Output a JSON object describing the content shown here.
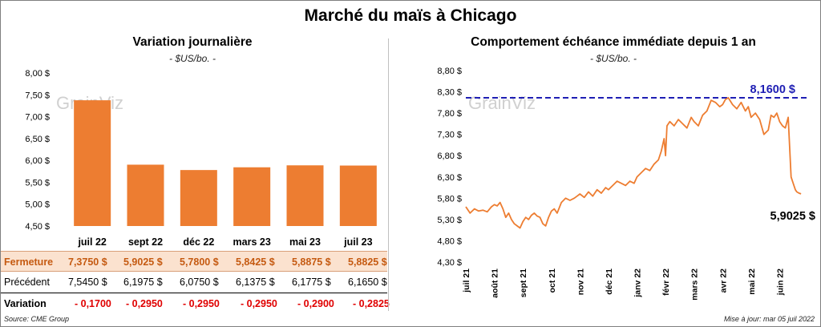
{
  "title": "Marché du maïs à Chicago",
  "left_panel": {
    "subtitle": "Variation journalière",
    "unit": "- $US/bo. -",
    "watermark": "GrainViz"
  },
  "right_panel": {
    "subtitle": "Comportement échéance immédiate depuis 1 an",
    "unit": "- $US/bo. -",
    "watermark": "GrainViz",
    "max_label": "8,1600 $",
    "last_label": "5,9025 $"
  },
  "table": {
    "close_label": "Fermeture",
    "prev_label": "Précédent",
    "var_label": "Variation",
    "close": [
      "7,3750  $",
      "5,9025  $",
      "5,7800  $",
      "5,8425  $",
      "5,8875  $",
      "5,8825  $"
    ],
    "prev": [
      "7,5450  $",
      "6,1975  $",
      "6,0750  $",
      "6,1375  $",
      "6,1775  $",
      "6,1650  $"
    ],
    "var": [
      "- 0,1700",
      "- 0,2950",
      "- 0,2950",
      "- 0,2950",
      "- 0,2900",
      "- 0,2825"
    ]
  },
  "footer": {
    "source": "Source: CME Group",
    "updated": "Mise à jour: mar 05 juil 2022"
  },
  "colors": {
    "bar": "#ed7d31",
    "line": "#ed7d31",
    "max_line": "#1f1fb4",
    "close_row_bg": "#fbe2cf",
    "close_row_text": "#c55a11",
    "negative": "#e00000"
  },
  "chart_data": [
    {
      "type": "bar",
      "title": "Variation journalière",
      "categories": [
        "juil 22",
        "sept 22",
        "déc 22",
        "mars 23",
        "mai 23",
        "juil 23"
      ],
      "values": [
        7.375,
        5.9025,
        5.78,
        5.8425,
        5.8875,
        5.8825
      ],
      "ylim": [
        4.5,
        8.0
      ],
      "yticks": [
        4.5,
        5.0,
        5.5,
        6.0,
        6.5,
        7.0,
        7.5,
        8.0
      ],
      "ytick_labels": [
        "4,50 $",
        "5,00 $",
        "5,50 $",
        "6,00 $",
        "6,50 $",
        "7,00 $",
        "7,50 $",
        "8,00 $"
      ],
      "grid": false
    },
    {
      "type": "line",
      "title": "Comportement échéance immédiate depuis 1 an",
      "ylim": [
        4.3,
        8.8
      ],
      "yticks": [
        4.3,
        4.8,
        5.3,
        5.8,
        6.3,
        6.8,
        7.3,
        7.8,
        8.3,
        8.8
      ],
      "ytick_labels": [
        "4,30 $",
        "4,80 $",
        "5,30 $",
        "5,80 $",
        "6,30 $",
        "6,80 $",
        "7,30 $",
        "7,80 $",
        "8,30 $",
        "8,80 $"
      ],
      "x_labels": [
        "juil 21",
        "août 21",
        "sept 21",
        "oct 21",
        "nov 21",
        "déc 21",
        "janv 22",
        "févr 22",
        "mars 22",
        "avr 22",
        "mai 22",
        "juin 22"
      ],
      "max_value": 8.16,
      "last_value": 5.9025,
      "series": [
        {
          "x": [
            0,
            0.15,
            0.3,
            0.45,
            0.6,
            0.75,
            0.9,
            1.0,
            1.1,
            1.2,
            1.3,
            1.4,
            1.5,
            1.6,
            1.7,
            1.8,
            1.9,
            2.0,
            2.1,
            2.2,
            2.3,
            2.4,
            2.5,
            2.6,
            2.7,
            2.8,
            2.9,
            3.0,
            3.1,
            3.2,
            3.35,
            3.5,
            3.65,
            3.8,
            3.9,
            4.0,
            4.15,
            4.3,
            4.45,
            4.6,
            4.75,
            4.9,
            5.0,
            5.15,
            5.3,
            5.45,
            5.6,
            5.75,
            5.9,
            6.0,
            6.15,
            6.3,
            6.45,
            6.6,
            6.75,
            6.85,
            6.95,
            7.0,
            7.05,
            7.15,
            7.3,
            7.45,
            7.6,
            7.75,
            7.9,
            8.0,
            8.15,
            8.3,
            8.45,
            8.6,
            8.75,
            8.9,
            9.0,
            9.1,
            9.2,
            9.35,
            9.5,
            9.65,
            9.8,
            9.9,
            10.0,
            10.15,
            10.3,
            10.45,
            10.6,
            10.7,
            10.8,
            10.9,
            11.0,
            11.1,
            11.2,
            11.3,
            11.4,
            11.5,
            11.55,
            11.6,
            11.68,
            11.75
          ],
          "y": [
            5.6,
            5.45,
            5.55,
            5.5,
            5.52,
            5.48,
            5.6,
            5.65,
            5.62,
            5.7,
            5.55,
            5.35,
            5.45,
            5.3,
            5.2,
            5.15,
            5.1,
            5.25,
            5.35,
            5.3,
            5.4,
            5.45,
            5.38,
            5.35,
            5.2,
            5.15,
            5.35,
            5.5,
            5.55,
            5.45,
            5.7,
            5.8,
            5.75,
            5.8,
            5.85,
            5.9,
            5.82,
            5.95,
            5.85,
            6.0,
            5.92,
            6.05,
            6.0,
            6.1,
            6.2,
            6.15,
            6.1,
            6.2,
            6.15,
            6.3,
            6.4,
            6.5,
            6.45,
            6.6,
            6.7,
            6.9,
            7.2,
            6.8,
            7.5,
            7.6,
            7.5,
            7.65,
            7.55,
            7.45,
            7.7,
            7.6,
            7.5,
            7.75,
            7.85,
            8.1,
            8.05,
            7.95,
            8.0,
            8.12,
            8.16,
            8.0,
            7.9,
            8.05,
            7.85,
            7.95,
            7.7,
            7.8,
            7.65,
            7.3,
            7.4,
            7.75,
            7.7,
            7.8,
            7.6,
            7.5,
            7.45,
            7.7,
            6.3,
            6.1,
            6.0,
            5.95,
            5.92,
            5.9025
          ]
        }
      ],
      "grid": false
    }
  ]
}
